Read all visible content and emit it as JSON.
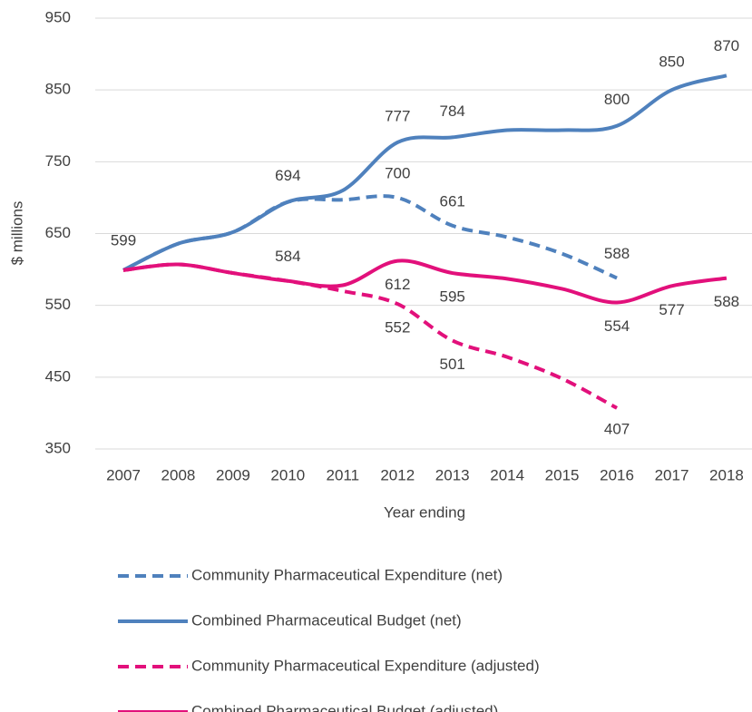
{
  "chart_data": {
    "type": "line",
    "x_label": "Year ending",
    "y_label": "$ millions",
    "categories": [
      "2007",
      "2008",
      "2009",
      "2010",
      "2011",
      "2012",
      "2013",
      "2014",
      "2015",
      "2016",
      "2017",
      "2018"
    ],
    "ylim": [
      350,
      950
    ],
    "yticks": [
      350,
      450,
      550,
      650,
      750,
      850,
      950
    ],
    "grid": true,
    "legend": "bottom",
    "series": [
      {
        "name": "Community Pharmaceutical Expenditure (net)",
        "color": "#4f81bd",
        "dashed": true,
        "values": [
          599,
          636,
          652,
          694,
          697,
          700,
          661,
          645,
          622,
          588,
          null,
          null
        ],
        "label_indices": [
          0,
          3,
          5,
          6,
          9
        ]
      },
      {
        "name": "Combined Pharmaceutical Budget (net)",
        "color": "#4f81bd",
        "dashed": false,
        "values": [
          599,
          636,
          652,
          694,
          710,
          777,
          784,
          794,
          794,
          800,
          850,
          870
        ],
        "label_indices": [
          5,
          6,
          9,
          10,
          11
        ]
      },
      {
        "name": "Community Pharmaceutical Expenditure (adjusted)",
        "color": "#e2107b",
        "dashed": true,
        "values": [
          599,
          607,
          595,
          584,
          570,
          552,
          501,
          478,
          448,
          407,
          null,
          null
        ],
        "label_indices": [
          5,
          6,
          9
        ]
      },
      {
        "name": "Combined Pharmaceutical Budget (adjusted)",
        "color": "#e2107b",
        "dashed": false,
        "values": [
          599,
          607,
          595,
          584,
          578,
          612,
          595,
          587,
          573,
          554,
          577,
          588
        ],
        "label_indices": [
          3,
          5,
          6,
          9,
          10,
          11
        ]
      }
    ]
  }
}
